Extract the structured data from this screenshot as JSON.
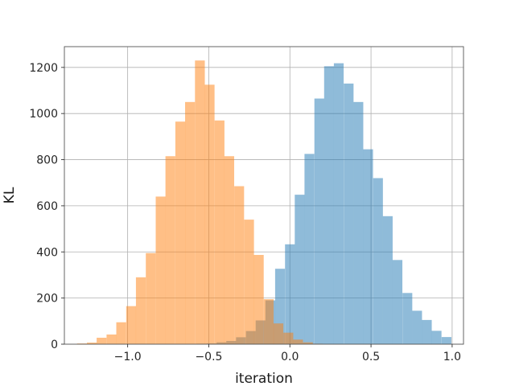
{
  "chart_data": {
    "type": "histogram",
    "title": "",
    "xlabel": "iteration",
    "ylabel": "KL",
    "xlim": [
      -1.39,
      1.07
    ],
    "ylim": [
      0,
      1290
    ],
    "grid": true,
    "legend": "none",
    "x_ticks": [
      -1.0,
      -0.5,
      0.0,
      0.5,
      1.0
    ],
    "x_tick_labels": [
      "−1.0",
      "−0.5",
      "0.0",
      "0.5",
      "1.0"
    ],
    "y_ticks": [
      0,
      200,
      400,
      600,
      800,
      1000,
      1200
    ],
    "y_tick_labels": [
      "0",
      "200",
      "400",
      "600",
      "800",
      "1000",
      "1200"
    ],
    "series": [
      {
        "color": "#1f77b4",
        "alpha": 0.5,
        "bin_width": 0.0603,
        "bin_starts": [
          -0.573,
          -0.513,
          -0.452,
          -0.392,
          -0.332,
          -0.271,
          -0.211,
          -0.151,
          -0.091,
          -0.03,
          0.03,
          0.09,
          0.151,
          0.211,
          0.271,
          0.332,
          0.392,
          0.452,
          0.513,
          0.573,
          0.633,
          0.694,
          0.754,
          0.814,
          0.874,
          0.935
        ],
        "counts": [
          2,
          3,
          8,
          14,
          30,
          57,
          103,
          190,
          327,
          433,
          648,
          825,
          1065,
          1205,
          1218,
          1130,
          1050,
          845,
          720,
          555,
          365,
          222,
          145,
          105,
          58,
          31
        ]
      },
      {
        "color": "#ff7f0e",
        "alpha": 0.5,
        "bin_width": 0.0606,
        "bin_starts": [
          -1.312,
          -1.251,
          -1.191,
          -1.13,
          -1.07,
          -1.009,
          -0.949,
          -0.888,
          -0.827,
          -0.767,
          -0.706,
          -0.646,
          -0.585,
          -0.525,
          -0.464,
          -0.404,
          -0.343,
          -0.282,
          -0.222,
          -0.161,
          -0.101,
          -0.04,
          0.02,
          0.081,
          0.141
        ],
        "counts": [
          3,
          7,
          28,
          42,
          95,
          165,
          290,
          395,
          640,
          815,
          965,
          1050,
          1230,
          1125,
          970,
          815,
          685,
          540,
          387,
          195,
          90,
          50,
          20,
          8,
          2
        ]
      }
    ]
  }
}
